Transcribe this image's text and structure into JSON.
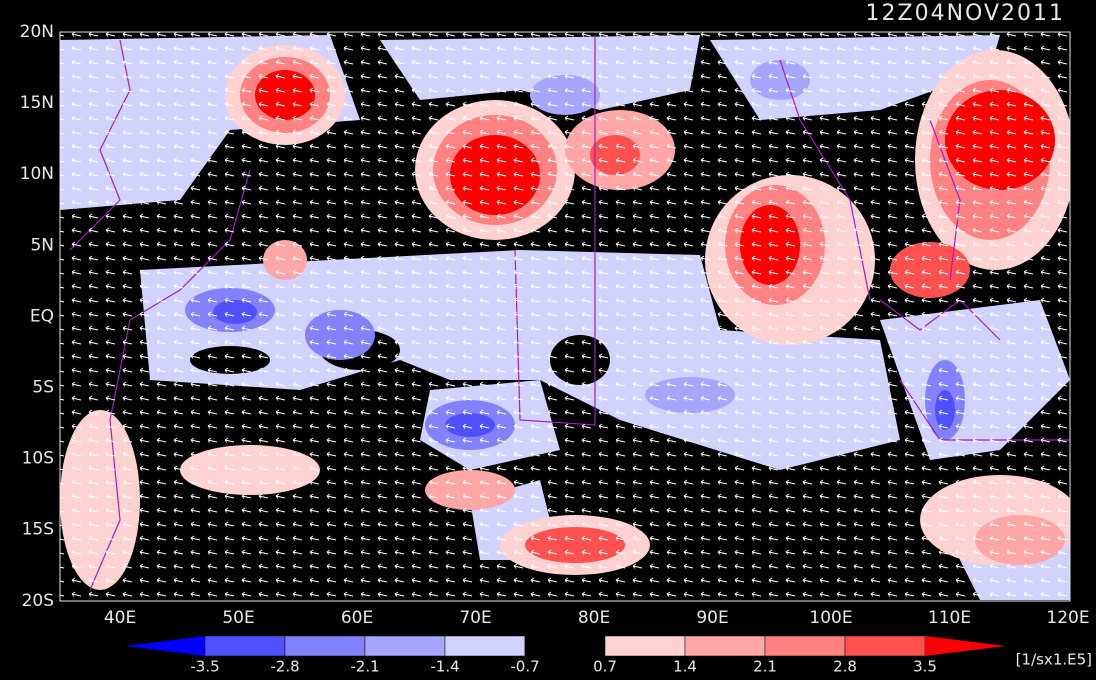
{
  "title": "12Z04NOV2011",
  "map": {
    "lat_labels": [
      "20N",
      "15N",
      "10N",
      "5N",
      "EQ",
      "5S",
      "10S",
      "15S",
      "20S"
    ],
    "lon_labels": [
      "40E",
      "50E",
      "60E",
      "70E",
      "80E",
      "90E",
      "100E",
      "110E",
      "120E"
    ]
  },
  "colorbar": {
    "labels": [
      "-3.5",
      "-2.8",
      "-2.1",
      "-1.4",
      "-0.7",
      "0.7",
      "1.4",
      "2.1",
      "2.8",
      "3.5"
    ],
    "colors": [
      "#0000ff",
      "#5050ff",
      "#8282ff",
      "#a6a6ff",
      "#d2d2ff",
      "#000000",
      "#ffd2d2",
      "#ffa6a6",
      "#ff8282",
      "#ff5050",
      "#ff0000"
    ],
    "unit": "[1/sx1.E5]"
  }
}
